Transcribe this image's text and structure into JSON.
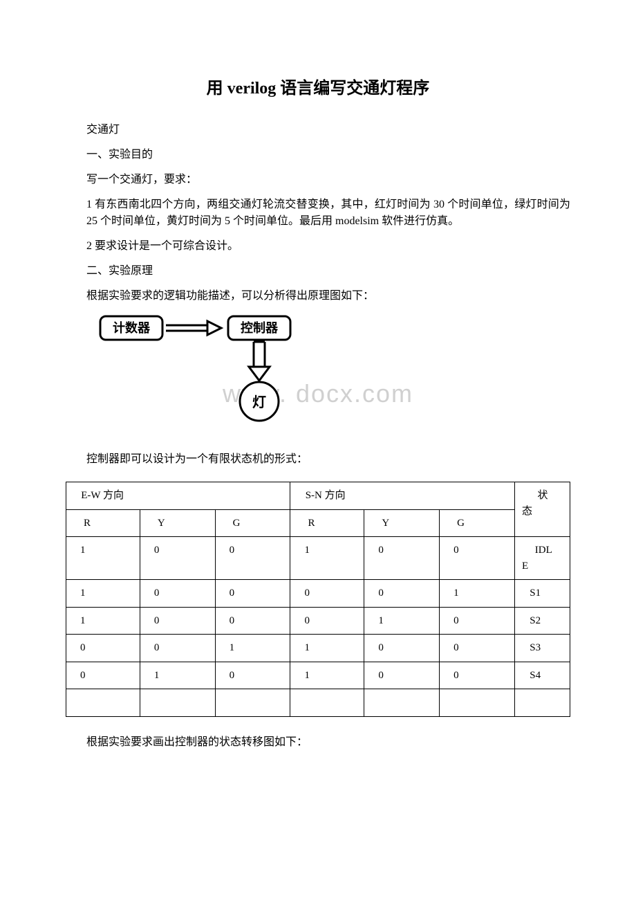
{
  "title": "用 verilog 语言编写交通灯程序",
  "paragraphs": {
    "p1": "交通灯",
    "p2": "一、实验目的",
    "p3": "写一个交通灯，要求：",
    "p4": "1 有东西南北四个方向，两组交通灯轮流交替变换，其中，红灯时间为 30 个时间单位，绿灯时间为 25 个时间单位，黄灯时间为 5 个时间单位。最后用 modelsim 软件进行仿真。",
    "p5": "2 要求设计是一个可综合设计。",
    "p6": "二、实验原理",
    "p7": "根据实验要求的逻辑功能描述，可以分析得出原理图如下：",
    "p8": "控制器即可以设计为一个有限状态机的形式：",
    "p9": "根据实验要求画出控制器的状态转移图如下："
  },
  "diagram": {
    "box1": "计数器",
    "box2": "控制器",
    "circle": "灯"
  },
  "watermark": "www.   docx.com",
  "table": {
    "header": {
      "ew": "E-W 方向",
      "sn": "S-N 方向",
      "state": "状态",
      "r": "R",
      "y": "Y",
      "g": "G"
    },
    "rows": [
      {
        "ew_r": "1",
        "ew_y": "0",
        "ew_g": "0",
        "sn_r": "1",
        "sn_y": "0",
        "sn_g": "0",
        "state": "IDLE"
      },
      {
        "ew_r": "1",
        "ew_y": "0",
        "ew_g": "0",
        "sn_r": "0",
        "sn_y": "0",
        "sn_g": "1",
        "state": "S1"
      },
      {
        "ew_r": "1",
        "ew_y": "0",
        "ew_g": "0",
        "sn_r": "0",
        "sn_y": "1",
        "sn_g": "0",
        "state": "S2"
      },
      {
        "ew_r": "0",
        "ew_y": "0",
        "ew_g": "1",
        "sn_r": "1",
        "sn_y": "0",
        "sn_g": "0",
        "state": "S3"
      },
      {
        "ew_r": "0",
        "ew_y": "1",
        "ew_g": "0",
        "sn_r": "1",
        "sn_y": "0",
        "sn_g": "0",
        "state": "S4"
      }
    ]
  },
  "colors": {
    "text": "#000000",
    "bg": "#ffffff",
    "watermark": "#d0d0d0",
    "border": "#000000"
  }
}
